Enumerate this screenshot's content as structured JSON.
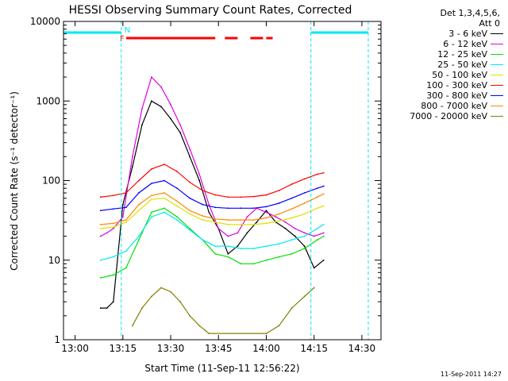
{
  "chart_data": {
    "type": "line",
    "title": "HESSI Observing Summary Count Rates, Corrected",
    "xlabel": "Start Time (11-Sep-11 12:56:22)",
    "ylabel": "Corrected Count Rate (s⁻¹ detector⁻¹)",
    "x_axis": {
      "type": "time",
      "unit": "minutes after 12:56:22",
      "range_labels": [
        "12:56:22",
        "14:36:00"
      ],
      "ticks": [
        "13:00",
        "13:15",
        "13:30",
        "13:45",
        "14:00",
        "14:15",
        "14:30"
      ]
    },
    "y_axis": {
      "scale": "log",
      "ylim": [
        1,
        10000
      ],
      "ticks": [
        "1",
        "10",
        "100",
        "1000",
        "10000"
      ]
    },
    "grid": false,
    "legend_header": [
      "Det 1,3,4,5,6,",
      "Att 0"
    ],
    "series": [
      {
        "name": "3 - 6 keV",
        "color": "#000000",
        "x": [
          "13:08",
          "13:10",
          "13:12",
          "13:15",
          "13:18",
          "13:21",
          "13:24",
          "13:27",
          "13:30",
          "13:33",
          "13:36",
          "13:39",
          "13:42",
          "13:45",
          "13:48",
          "13:51",
          "13:54",
          "13:57",
          "14:00",
          "14:03",
          "14:06",
          "14:09",
          "14:12",
          "14:15",
          "14:18"
        ],
        "values": [
          2.5,
          2.5,
          3,
          50,
          150,
          500,
          1000,
          850,
          600,
          400,
          200,
          100,
          40,
          25,
          12,
          15,
          22,
          30,
          42,
          30,
          25,
          20,
          15,
          8,
          10
        ]
      },
      {
        "name": "6 - 12 keV",
        "color": "#e000e0",
        "x": [
          "13:08",
          "13:10",
          "13:12",
          "13:15",
          "13:18",
          "13:21",
          "13:24",
          "13:27",
          "13:30",
          "13:33",
          "13:36",
          "13:39",
          "13:42",
          "13:45",
          "13:48",
          "13:51",
          "13:54",
          "13:57",
          "14:00",
          "14:03",
          "14:06",
          "14:09",
          "14:12",
          "14:15",
          "14:18"
        ],
        "values": [
          20,
          22,
          25,
          35,
          200,
          800,
          2000,
          1500,
          900,
          500,
          250,
          120,
          50,
          25,
          20,
          22,
          35,
          45,
          40,
          35,
          30,
          25,
          22,
          20,
          22
        ]
      },
      {
        "name": "12 - 25 keV",
        "color": "#00e000",
        "x": [
          "13:08",
          "13:12",
          "13:16",
          "13:20",
          "13:24",
          "13:28",
          "13:32",
          "13:36",
          "13:40",
          "13:44",
          "13:48",
          "13:52",
          "13:56",
          "14:00",
          "14:04",
          "14:08",
          "14:12",
          "14:16",
          "14:18"
        ],
        "values": [
          6,
          6.5,
          8,
          18,
          40,
          45,
          35,
          25,
          18,
          12,
          11,
          9,
          9,
          10,
          11,
          12,
          14,
          18,
          20
        ]
      },
      {
        "name": "25 - 50 keV",
        "color": "#00e8f0",
        "x": [
          "13:08",
          "13:12",
          "13:16",
          "13:20",
          "13:24",
          "13:28",
          "13:32",
          "13:36",
          "13:40",
          "13:44",
          "13:48",
          "13:52",
          "13:56",
          "14:00",
          "14:04",
          "14:08",
          "14:12",
          "14:16",
          "14:18"
        ],
        "values": [
          10,
          11,
          13,
          20,
          35,
          40,
          32,
          24,
          18,
          15,
          15,
          14,
          14,
          15,
          16,
          18,
          20,
          25,
          28
        ]
      },
      {
        "name": "50 - 100 keV",
        "color": "#e0e000",
        "x": [
          "13:08",
          "13:12",
          "13:16",
          "13:20",
          "13:24",
          "13:28",
          "13:32",
          "13:36",
          "13:40",
          "13:44",
          "13:48",
          "13:52",
          "13:56",
          "14:00",
          "14:04",
          "14:08",
          "14:12",
          "14:16",
          "14:18"
        ],
        "values": [
          25,
          26,
          30,
          42,
          58,
          60,
          48,
          38,
          32,
          30,
          28,
          28,
          28,
          29,
          31,
          34,
          38,
          45,
          48
        ]
      },
      {
        "name": "100 - 300 keV",
        "color": "#ff0000",
        "x": [
          "13:08",
          "13:12",
          "13:16",
          "13:20",
          "13:24",
          "13:28",
          "13:32",
          "13:36",
          "13:40",
          "13:44",
          "13:48",
          "13:52",
          "13:56",
          "14:00",
          "14:04",
          "14:08",
          "14:12",
          "14:16",
          "14:18"
        ],
        "values": [
          62,
          65,
          70,
          100,
          140,
          160,
          130,
          95,
          75,
          66,
          62,
          62,
          63,
          66,
          75,
          90,
          105,
          120,
          125
        ]
      },
      {
        "name": "300 - 800 keV",
        "color": "#0000ff",
        "x": [
          "13:08",
          "13:12",
          "13:16",
          "13:20",
          "13:24",
          "13:28",
          "13:32",
          "13:36",
          "13:40",
          "13:44",
          "13:48",
          "13:52",
          "13:56",
          "14:00",
          "14:04",
          "14:08",
          "14:12",
          "14:16",
          "14:18"
        ],
        "values": [
          42,
          44,
          46,
          70,
          92,
          100,
          80,
          60,
          50,
          46,
          45,
          45,
          45,
          47,
          52,
          60,
          70,
          80,
          85
        ]
      },
      {
        "name": "800 - 7000 keV",
        "color": "#ff8800",
        "x": [
          "13:08",
          "13:12",
          "13:16",
          "13:20",
          "13:24",
          "13:28",
          "13:32",
          "13:36",
          "13:40",
          "13:44",
          "13:48",
          "13:52",
          "13:56",
          "14:00",
          "14:04",
          "14:08",
          "14:12",
          "14:16",
          "14:18"
        ],
        "values": [
          28,
          29,
          32,
          50,
          65,
          70,
          55,
          42,
          36,
          33,
          32,
          32,
          32,
          34,
          38,
          44,
          52,
          62,
          68
        ]
      },
      {
        "name": "7000 - 20000 keV",
        "color": "#808000",
        "x": [
          "13:18",
          "13:21",
          "13:24",
          "13:27",
          "13:30",
          "13:33",
          "13:36",
          "13:39",
          "13:42",
          "14:00",
          "14:04",
          "14:08",
          "14:12",
          "14:15"
        ],
        "values": [
          1.5,
          2.5,
          3.5,
          4.5,
          4,
          3,
          2,
          1.5,
          1.2,
          1.2,
          1.5,
          2.5,
          3.5,
          4.5
        ]
      }
    ],
    "annotations": [
      {
        "label": "F",
        "color": "#ff0000",
        "segments": [
          [
            "13:16",
            "13:44"
          ],
          [
            "13:47",
            "13:51"
          ],
          [
            "13:55",
            "13:59"
          ],
          [
            "14:00",
            "14:02"
          ]
        ]
      },
      {
        "label": "N",
        "color": "#00e8f0",
        "segments": [
          [
            "12:56:22",
            "13:14:30"
          ],
          [
            "14:14",
            "14:32"
          ]
        ]
      }
    ]
  },
  "timestamp": "11-Sep-2011 14:27"
}
